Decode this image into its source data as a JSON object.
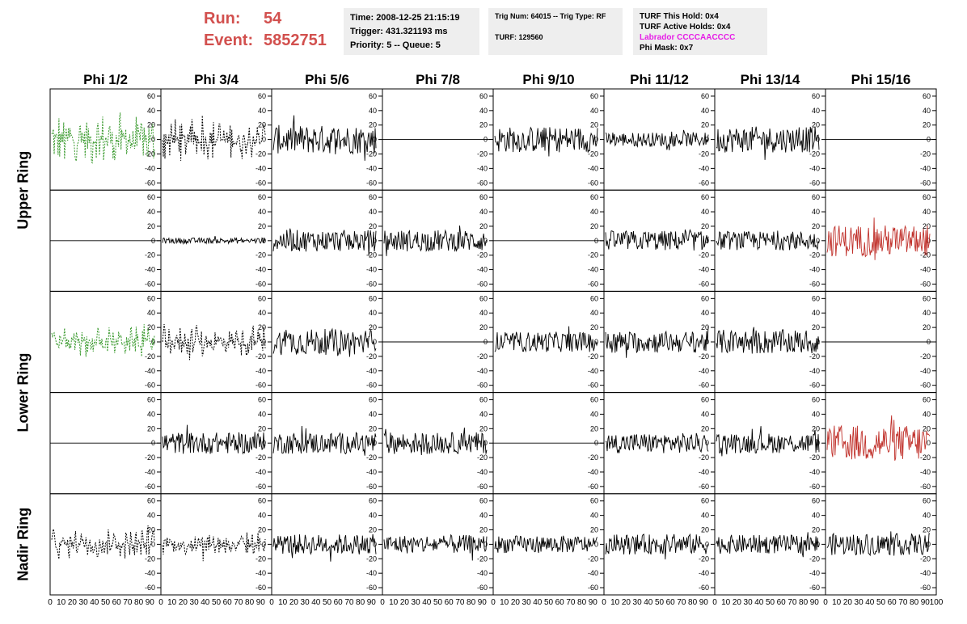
{
  "header": {
    "run_label": "Run:",
    "run_value": "54",
    "event_label": "Event:",
    "event_value": "5852751"
  },
  "info": {
    "time": "Time: 2008-12-25 21:15:19",
    "trigger": "Trigger: 431.321193 ms",
    "priority": "Priority: 5 -- Queue: 5",
    "trig_num": "Trig Num: 64015 -- Trig Type: RF",
    "turf": "TURF: 129560",
    "turf_hold": "TURF This Hold: 0x4",
    "turf_active": "TURF Active Holds: 0x4",
    "labrador": "Labrador CCCCAACCCC",
    "phi_mask": "Phi Mask: 0x7"
  },
  "chart_data": {
    "type": "line",
    "columns": [
      "Phi 1/2",
      "Phi 3/4",
      "Phi 5/6",
      "Phi 7/8",
      "Phi 9/10",
      "Phi 11/12",
      "Phi 13/14",
      "Phi 15/16"
    ],
    "ring_labels": [
      {
        "name": "Upper Ring",
        "rows": [
          0,
          1
        ]
      },
      {
        "name": "Lower Ring",
        "rows": [
          2,
          3
        ]
      },
      {
        "name": "Nadir Ring",
        "rows": [
          4
        ]
      }
    ],
    "rows": 5,
    "ylim": [
      -70,
      70
    ],
    "yticks": [
      -60,
      -40,
      -20,
      0,
      20,
      40,
      60
    ],
    "xlim": [
      0,
      100
    ],
    "xticks": [
      0,
      10,
      20,
      30,
      40,
      50,
      60,
      70,
      80,
      90,
      100
    ],
    "samples": 130,
    "colors": {
      "black": "#000000",
      "green": "#3a9a2e",
      "red": "#c0302a",
      "accent": "#d2504e",
      "magenta": "#e61ce6"
    },
    "traces": [
      {
        "row": 0,
        "col": 0,
        "style": "dashed",
        "color": "green",
        "amp": 40,
        "kind": "fat"
      },
      {
        "row": 0,
        "col": 1,
        "style": "dashed",
        "color": "black",
        "amp": 30,
        "kind": "fat"
      },
      {
        "row": 0,
        "col": 2,
        "style": "solid",
        "color": "black",
        "amp": 20,
        "kind": "noise"
      },
      {
        "row": 0,
        "col": 3,
        "style": "solid",
        "color": "black",
        "amp": 0,
        "kind": "flat"
      },
      {
        "row": 0,
        "col": 4,
        "style": "solid",
        "color": "black",
        "amp": 18,
        "kind": "noise"
      },
      {
        "row": 0,
        "col": 5,
        "style": "solid",
        "color": "black",
        "amp": 10,
        "kind": "noise"
      },
      {
        "row": 0,
        "col": 6,
        "style": "solid",
        "color": "black",
        "amp": 18,
        "kind": "noise"
      },
      {
        "row": 0,
        "col": 7,
        "style": "solid",
        "color": "black",
        "amp": 0,
        "kind": "flat"
      },
      {
        "row": 1,
        "col": 0,
        "style": "solid",
        "color": "black",
        "amp": 0,
        "kind": "flat"
      },
      {
        "row": 1,
        "col": 1,
        "style": "solid",
        "color": "black",
        "amp": 4,
        "kind": "noise"
      },
      {
        "row": 1,
        "col": 2,
        "style": "solid",
        "color": "black",
        "amp": 15,
        "kind": "noise"
      },
      {
        "row": 1,
        "col": 3,
        "style": "solid",
        "color": "black",
        "amp": 15,
        "kind": "noise"
      },
      {
        "row": 1,
        "col": 4,
        "style": "solid",
        "color": "black",
        "amp": 0,
        "kind": "flat"
      },
      {
        "row": 1,
        "col": 5,
        "style": "solid",
        "color": "black",
        "amp": 14,
        "kind": "noise"
      },
      {
        "row": 1,
        "col": 6,
        "style": "solid",
        "color": "black",
        "amp": 13,
        "kind": "noise"
      },
      {
        "row": 1,
        "col": 7,
        "style": "solid",
        "color": "red",
        "amp": 22,
        "kind": "noise"
      },
      {
        "row": 2,
        "col": 0,
        "style": "dashed",
        "color": "green",
        "amp": 22,
        "kind": "fat"
      },
      {
        "row": 2,
        "col": 1,
        "style": "dashed",
        "color": "black",
        "amp": 25,
        "kind": "fat"
      },
      {
        "row": 2,
        "col": 2,
        "style": "solid",
        "color": "black",
        "amp": 18,
        "kind": "noise"
      },
      {
        "row": 2,
        "col": 3,
        "style": "solid",
        "color": "black",
        "amp": 0,
        "kind": "flat"
      },
      {
        "row": 2,
        "col": 4,
        "style": "solid",
        "color": "black",
        "amp": 14,
        "kind": "noise"
      },
      {
        "row": 2,
        "col": 5,
        "style": "solid",
        "color": "black",
        "amp": 15,
        "kind": "noise"
      },
      {
        "row": 2,
        "col": 6,
        "style": "solid",
        "color": "black",
        "amp": 17,
        "kind": "noise"
      },
      {
        "row": 2,
        "col": 7,
        "style": "solid",
        "color": "black",
        "amp": 0,
        "kind": "flat"
      },
      {
        "row": 3,
        "col": 0,
        "style": "solid",
        "color": "black",
        "amp": 0,
        "kind": "flat"
      },
      {
        "row": 3,
        "col": 1,
        "style": "solid",
        "color": "black",
        "amp": 15,
        "kind": "noise"
      },
      {
        "row": 3,
        "col": 2,
        "style": "solid",
        "color": "black",
        "amp": 15,
        "kind": "noise"
      },
      {
        "row": 3,
        "col": 3,
        "style": "solid",
        "color": "black",
        "amp": 15,
        "kind": "noise"
      },
      {
        "row": 3,
        "col": 4,
        "style": "solid",
        "color": "black",
        "amp": 0,
        "kind": "flat"
      },
      {
        "row": 3,
        "col": 5,
        "style": "solid",
        "color": "black",
        "amp": 14,
        "kind": "noise"
      },
      {
        "row": 3,
        "col": 6,
        "style": "solid",
        "color": "black",
        "amp": 14,
        "kind": "noise"
      },
      {
        "row": 3,
        "col": 7,
        "style": "solid",
        "color": "red",
        "amp": 25,
        "kind": "noise"
      },
      {
        "row": 4,
        "col": 0,
        "style": "dashed",
        "color": "black",
        "amp": 22,
        "kind": "fat"
      },
      {
        "row": 4,
        "col": 1,
        "style": "dashed",
        "color": "black",
        "amp": 18,
        "kind": "fat"
      },
      {
        "row": 4,
        "col": 2,
        "style": "solid",
        "color": "black",
        "amp": 14,
        "kind": "noise"
      },
      {
        "row": 4,
        "col": 3,
        "style": "solid",
        "color": "black",
        "amp": 13,
        "kind": "noise"
      },
      {
        "row": 4,
        "col": 4,
        "style": "solid",
        "color": "black",
        "amp": 12,
        "kind": "noise"
      },
      {
        "row": 4,
        "col": 5,
        "style": "solid",
        "color": "black",
        "amp": 14,
        "kind": "noise"
      },
      {
        "row": 4,
        "col": 6,
        "style": "solid",
        "color": "black",
        "amp": 13,
        "kind": "noise"
      },
      {
        "row": 4,
        "col": 7,
        "style": "solid",
        "color": "black",
        "amp": 15,
        "kind": "noise"
      }
    ]
  }
}
